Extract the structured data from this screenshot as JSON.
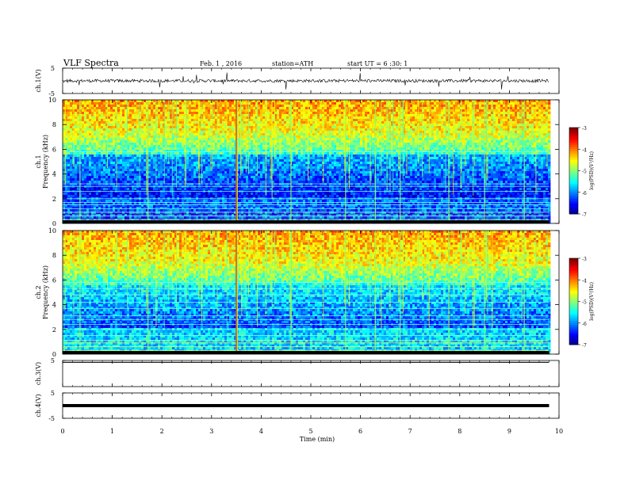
{
  "header": {
    "title": "VLF Spectra",
    "date": "Feb. 1 , 2016",
    "station": "station=ATH",
    "start": "start UT = 6 :30: 1"
  },
  "chart_data": {
    "type": "heatmap",
    "xlabel": "Time (min)",
    "xlim": [
      0,
      10
    ],
    "x_ticks": [
      "0",
      "1",
      "2",
      "3",
      "4",
      "5",
      "6",
      "7",
      "8",
      "9",
      "10"
    ],
    "colormap": [
      "#00007f",
      "#0000ff",
      "#0080ff",
      "#00ffff",
      "#80ff80",
      "#ffff00",
      "#ff8000",
      "#ff0000",
      "#7f0000"
    ],
    "panels": [
      {
        "name": "waveform",
        "ylabel": "ch.1(V)",
        "ylim": [
          -5,
          5
        ],
        "y_ticks": [
          "5",
          "-5"
        ],
        "signal": "noise"
      },
      {
        "name": "spectrogram",
        "ylabel": "ch.1",
        "ylabel2": "Frequency (kHz)",
        "ylim": [
          0,
          10
        ],
        "y_ticks": [
          "10",
          "8",
          "6",
          "4",
          "2",
          "0"
        ],
        "colorbar": {
          "label": "log(PSD)(V²/Hz)",
          "range": [
            -7,
            -3
          ],
          "ticks": [
            "-3",
            "-4",
            "-5",
            "-6",
            "-7"
          ]
        }
      },
      {
        "name": "spectrogram",
        "ylabel": "ch.2",
        "ylabel2": "Frequency (kHz)",
        "ylim": [
          0,
          10
        ],
        "y_ticks": [
          "10",
          "8",
          "6",
          "4",
          "2",
          "0"
        ],
        "colorbar": {
          "label": "log(PSD)(V²/Hz)",
          "range": [
            -7,
            -3
          ],
          "ticks": [
            "-3",
            "-4",
            "-5",
            "-6",
            "-7"
          ]
        }
      },
      {
        "name": "waveform",
        "ylabel": "ch.3(V)",
        "ylim": [
          -5,
          5
        ],
        "y_ticks": [
          "5"
        ],
        "signal": "flat"
      },
      {
        "name": "waveform",
        "ylabel": "ch.4(V)",
        "ylim": [
          -5,
          5
        ],
        "y_ticks": [
          "5",
          "-5"
        ],
        "signal": "thick"
      }
    ]
  }
}
